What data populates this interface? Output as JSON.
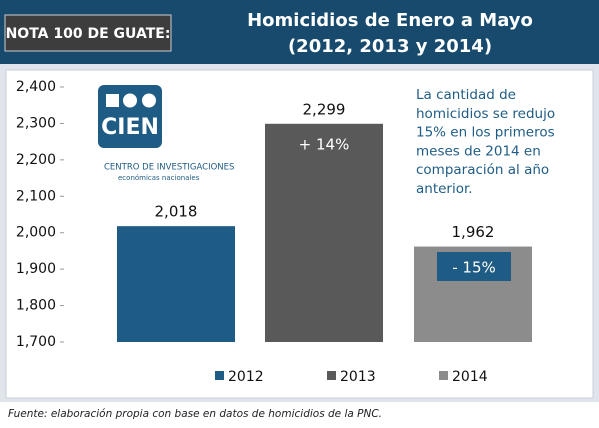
{
  "chart_data": {
    "type": "bar",
    "header_label": "NOTA 100 DE GUATE:",
    "title": "Homicidios de Enero a Mayo",
    "subtitle": "(2012, 2013 y 2014)",
    "categories": [
      "2012",
      "2013",
      "2014"
    ],
    "values": [
      2018,
      2299,
      1962
    ],
    "value_labels": [
      "2,018",
      "2,299",
      "1,962"
    ],
    "colors": [
      "#1f5c85",
      "#595959",
      "#8c8c8c"
    ],
    "ylim": [
      1700,
      2400
    ],
    "yticks": [
      {
        "value": 1700,
        "label": "1,700"
      },
      {
        "value": 1800,
        "label": "1,800"
      },
      {
        "value": 1900,
        "label": "1,900"
      },
      {
        "value": 2000,
        "label": "2,000"
      },
      {
        "value": 2100,
        "label": "2,100"
      },
      {
        "value": 2200,
        "label": "2,200"
      },
      {
        "value": 2300,
        "label": "2,300"
      },
      {
        "value": 2400,
        "label": "2,400"
      }
    ],
    "grid": false,
    "annotations": [
      "+ 14%",
      "- 15%"
    ],
    "note": [
      "La cantidad de",
      "homicidios se redujo",
      "15% en los primeros",
      "meses de 2014 en",
      "comparación al año",
      "anterior."
    ],
    "logo": {
      "name": "CIEN",
      "line1": "CENTRO DE INVESTIGACIONES",
      "line2": "económicas nacionales"
    },
    "source": "Fuente: elaboración propia con base en datos de homicidios de la PNC."
  }
}
